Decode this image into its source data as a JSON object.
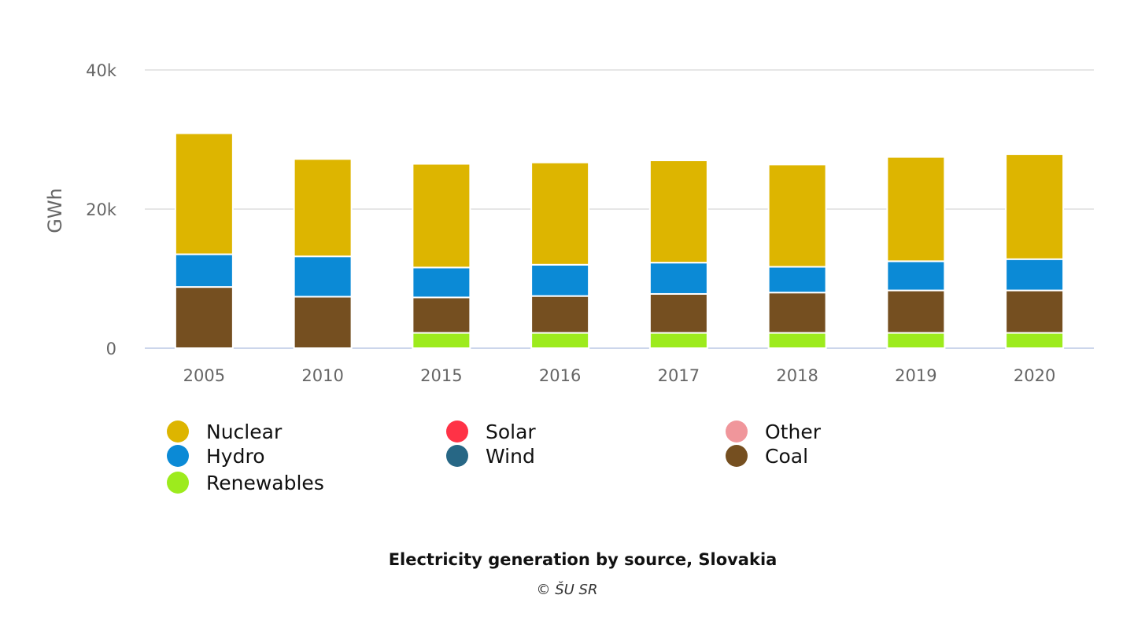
{
  "chart_data": {
    "type": "bar",
    "stacked": true,
    "title": "Electricity generation by source, Slovakia",
    "credit": "© ŠU SR",
    "xlabel": "",
    "ylabel": "GWh",
    "ylim": [
      0,
      40000
    ],
    "yticks": [
      0,
      20000,
      40000
    ],
    "ytick_labels": [
      "0",
      "20k",
      "40k"
    ],
    "grid": true,
    "legend_position": "bottom",
    "categories": [
      "2005",
      "2010",
      "2015",
      "2016",
      "2017",
      "2018",
      "2019",
      "2020"
    ],
    "series": [
      {
        "name": "Renewables",
        "color": "#9deb1d",
        "values": [
          0,
          0,
          2200,
          2200,
          2200,
          2200,
          2200,
          2200
        ]
      },
      {
        "name": "Coal",
        "color": "#754f20",
        "values": [
          8800,
          7400,
          5100,
          5300,
          5600,
          5800,
          6100,
          6100
        ]
      },
      {
        "name": "Wind",
        "color": "#276785",
        "values": [
          0,
          0,
          0,
          0,
          0,
          0,
          0,
          0
        ]
      },
      {
        "name": "Hydro",
        "color": "#0b8ad6",
        "values": [
          4700,
          5800,
          4300,
          4500,
          4500,
          3700,
          4200,
          4500
        ]
      },
      {
        "name": "Solar",
        "color": "#ff3246",
        "values": [
          0,
          0,
          0,
          0,
          0,
          0,
          0,
          0
        ]
      },
      {
        "name": "Other",
        "color": "#f0969b",
        "values": [
          0,
          0,
          0,
          0,
          0,
          0,
          0,
          0
        ]
      },
      {
        "name": "Nuclear",
        "color": "#ddb500",
        "values": [
          17400,
          14000,
          14900,
          14700,
          14700,
          14700,
          15000,
          15100
        ]
      }
    ]
  },
  "legend": [
    {
      "name": "Nuclear",
      "color": "#ddb500"
    },
    {
      "name": "Hydro",
      "color": "#0b8ad6"
    },
    {
      "name": "Renewables",
      "color": "#9deb1d"
    },
    {
      "name": "Solar",
      "color": "#ff3246"
    },
    {
      "name": "Wind",
      "color": "#276785"
    },
    {
      "name": "Other",
      "color": "#f0969b"
    },
    {
      "name": "Coal",
      "color": "#754f20"
    }
  ]
}
